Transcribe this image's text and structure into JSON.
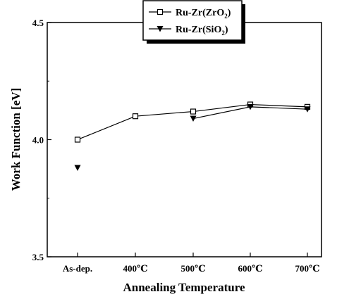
{
  "chart_data": {
    "type": "line",
    "title": "",
    "xlabel": "Annealing Temperature",
    "ylabel": "Work Function [eV]",
    "categories": [
      "As-dep.",
      "400℃",
      "500℃",
      "600℃",
      "700℃"
    ],
    "ylim": [
      3.5,
      4.5
    ],
    "yticks": [
      "3.5",
      "4.0",
      "4.5"
    ],
    "grid": false,
    "legend_position": "top-center",
    "series": [
      {
        "name": "Ru-Zr(ZrO2)",
        "legend_parts": [
          "Ru-Zr(ZrO",
          "2",
          ")"
        ],
        "marker": "open-square",
        "values": [
          4.0,
          4.1,
          4.12,
          4.15,
          4.14
        ],
        "connected_from": 0
      },
      {
        "name": "Ru-Zr(SiO2)",
        "legend_parts": [
          "Ru-Zr(SiO",
          "2",
          ")"
        ],
        "marker": "filled-down-triangle",
        "values": [
          3.88,
          null,
          4.09,
          4.14,
          4.13
        ],
        "connected_from": 2
      }
    ],
    "colors": {
      "line": "#000000",
      "marker": "#000000"
    }
  }
}
